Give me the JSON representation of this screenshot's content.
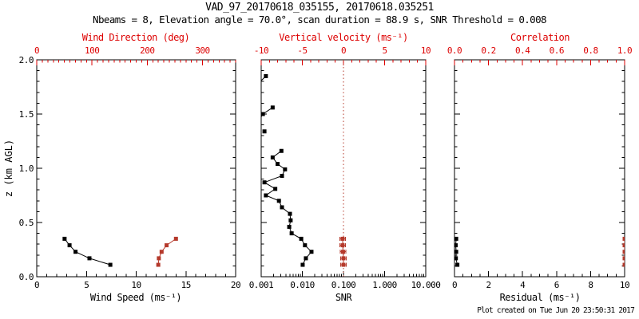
{
  "header": {
    "title": "VAD_97_20170618_035155, 20170618.035251",
    "subtitle": "Nbeams = 8, Elevation angle = 70.0°, scan duration = 88.9 s, SNR Threshold = 0.008"
  },
  "footer": {
    "created": "Plot created on Tue Jun 20 23:50:31 2017"
  },
  "colors": {
    "background": "#ffffff",
    "black": "#000000",
    "axis_red": "#dd0000",
    "data_red": "#b5392b"
  },
  "chart_data": [
    {
      "id": "wind-panel",
      "type": "scatter",
      "ylabel": "z (km AGL)",
      "ylim": [
        0,
        2
      ],
      "yticks": {
        "major": [
          0,
          0.5,
          1,
          1.5,
          2
        ],
        "labels": [
          "0.0",
          "0.5",
          "1.0",
          "1.5",
          "2.0"
        ],
        "minor_step": 0.1
      },
      "bottom_axis": {
        "label": "Wind Speed (ms⁻¹)",
        "scale": "linear",
        "lim": [
          0,
          20
        ],
        "major": [
          0,
          5,
          10,
          15,
          20
        ],
        "labels": [
          "0",
          "5",
          "10",
          "15",
          "20"
        ],
        "minor_step": 1,
        "color": "black"
      },
      "top_axis": {
        "label": "Wind Direction (deg)",
        "scale": "linear",
        "lim": [
          0,
          360
        ],
        "major": [
          0,
          100,
          200,
          300
        ],
        "labels": [
          "0",
          "100",
          "200",
          "300"
        ],
        "minor_step": 10,
        "color": "red"
      },
      "series": [
        {
          "name": "wind-speed",
          "axis": "bottom",
          "color": "black",
          "line_groups": [
            [
              [
                2.8,
                0.35
              ],
              [
                3.3,
                0.29
              ],
              [
                3.9,
                0.23
              ],
              [
                5.3,
                0.17
              ],
              [
                7.4,
                0.11
              ]
            ]
          ],
          "markers": [
            [
              2.8,
              0.35
            ],
            [
              3.3,
              0.29
            ],
            [
              3.9,
              0.23
            ],
            [
              5.3,
              0.17
            ],
            [
              7.4,
              0.11
            ]
          ]
        },
        {
          "name": "wind-direction",
          "axis": "top",
          "color": "red",
          "line_groups": [
            [
              [
                252,
                0.35
              ],
              [
                235,
                0.29
              ],
              [
                226,
                0.23
              ],
              [
                221,
                0.17
              ],
              [
                220,
                0.11
              ]
            ]
          ],
          "markers": [
            [
              252,
              0.35
            ],
            [
              235,
              0.29
            ],
            [
              226,
              0.23
            ],
            [
              221,
              0.17
            ],
            [
              220,
              0.11
            ]
          ]
        }
      ]
    },
    {
      "id": "snr-panel",
      "type": "scatter",
      "ylabel": "",
      "ylim": [
        0,
        2
      ],
      "yticks": {
        "major": [
          0,
          0.5,
          1,
          1.5,
          2
        ],
        "labels": [],
        "minor_step": 0.1
      },
      "bottom_axis": {
        "label": "SNR",
        "scale": "log",
        "lim": [
          0.001,
          10
        ],
        "major": [
          0.001,
          0.01,
          0.1,
          1,
          10
        ],
        "labels": [
          "0.001",
          "0.010",
          "0.100",
          "1.000",
          "10.000"
        ],
        "color": "black"
      },
      "top_axis": {
        "label": "Vertical velocity (ms⁻¹)",
        "scale": "linear",
        "lim": [
          -10,
          10
        ],
        "major": [
          -10,
          -5,
          0,
          5,
          10
        ],
        "labels": [
          "-10",
          "-5",
          "0",
          "5",
          "10"
        ],
        "minor_step": 1,
        "color": "red"
      },
      "refline": {
        "axis": "top",
        "value": 0,
        "style": "dotted",
        "color": "red"
      },
      "series": [
        {
          "name": "snr-profile",
          "axis": "bottom",
          "color": "black",
          "line_groups": [
            [
              [
                0.0013,
                1.85
              ],
              [
                0.00095,
                1.8
              ]
            ],
            [
              [
                0.0019,
                1.56
              ],
              [
                0.0011,
                1.5
              ],
              [
                0.00095,
                1.46
              ]
            ],
            [
              [
                0.0031,
                1.16
              ],
              [
                0.0019,
                1.1
              ],
              [
                0.0025,
                1.04
              ],
              [
                0.0038,
                0.99
              ],
              [
                0.0032,
                0.93
              ],
              [
                0.0012,
                0.87
              ],
              [
                0.0022,
                0.81
              ],
              [
                0.0013,
                0.75
              ],
              [
                0.0027,
                0.7
              ],
              [
                0.0032,
                0.64
              ],
              [
                0.005,
                0.58
              ],
              [
                0.0052,
                0.52
              ],
              [
                0.0048,
                0.46
              ],
              [
                0.0055,
                0.4
              ],
              [
                0.0094,
                0.35
              ],
              [
                0.0116,
                0.29
              ],
              [
                0.0167,
                0.23
              ],
              [
                0.0122,
                0.17
              ],
              [
                0.0102,
                0.11
              ]
            ]
          ],
          "markers": [
            [
              0.0013,
              1.85
            ],
            [
              0.0019,
              1.56
            ],
            [
              0.0011,
              1.5
            ],
            [
              0.0012,
              1.34
            ],
            [
              0.0031,
              1.16
            ],
            [
              0.0019,
              1.1
            ],
            [
              0.0025,
              1.04
            ],
            [
              0.0038,
              0.99
            ],
            [
              0.0032,
              0.93
            ],
            [
              0.0012,
              0.87
            ],
            [
              0.0022,
              0.81
            ],
            [
              0.0013,
              0.75
            ],
            [
              0.0027,
              0.7
            ],
            [
              0.0032,
              0.64
            ],
            [
              0.005,
              0.58
            ],
            [
              0.0052,
              0.52
            ],
            [
              0.0048,
              0.46
            ],
            [
              0.0055,
              0.4
            ],
            [
              0.0094,
              0.35
            ],
            [
              0.0116,
              0.29
            ],
            [
              0.0167,
              0.23
            ],
            [
              0.0122,
              0.17
            ],
            [
              0.0102,
              0.11
            ]
          ]
        },
        {
          "name": "vertical-velocity",
          "axis": "top",
          "color": "red",
          "xerr": 0.35,
          "line_groups": [
            [
              [
                -0.1,
                0.35
              ],
              [
                -0.1,
                0.29
              ],
              [
                -0.05,
                0.23
              ],
              [
                0,
                0.17
              ],
              [
                0,
                0.11
              ]
            ]
          ],
          "markers": [
            [
              -0.1,
              0.35
            ],
            [
              -0.1,
              0.29
            ],
            [
              -0.05,
              0.23
            ],
            [
              0,
              0.17
            ],
            [
              0,
              0.11
            ]
          ]
        }
      ]
    },
    {
      "id": "residual-panel",
      "type": "scatter",
      "ylabel": "",
      "ylim": [
        0,
        2
      ],
      "yticks": {
        "major": [
          0,
          0.5,
          1,
          1.5,
          2
        ],
        "labels": [],
        "minor_step": 0.1
      },
      "bottom_axis": {
        "label": "Residual (ms⁻¹)",
        "scale": "linear",
        "lim": [
          0,
          10
        ],
        "major": [
          0,
          2,
          4,
          6,
          8,
          10
        ],
        "labels": [
          "0",
          "2",
          "4",
          "6",
          "8",
          "10"
        ],
        "minor_step": 0.5,
        "color": "black"
      },
      "top_axis": {
        "label": "Correlation",
        "scale": "linear",
        "lim": [
          0,
          1
        ],
        "major": [
          0,
          0.2,
          0.4,
          0.6,
          0.8,
          1
        ],
        "labels": [
          "0.0",
          "0.2",
          "0.4",
          "0.6",
          "0.8",
          "1.0"
        ],
        "minor_step": 0.05,
        "color": "red"
      },
      "series": [
        {
          "name": "residual",
          "axis": "bottom",
          "color": "black",
          "line_groups": [
            [
              [
                0.1,
                0.35
              ],
              [
                0.07,
                0.29
              ],
              [
                0.1,
                0.23
              ],
              [
                0.08,
                0.17
              ],
              [
                0.17,
                0.11
              ]
            ]
          ],
          "markers": [
            [
              0.1,
              0.35
            ],
            [
              0.07,
              0.29
            ],
            [
              0.1,
              0.23
            ],
            [
              0.08,
              0.17
            ],
            [
              0.17,
              0.11
            ]
          ]
        },
        {
          "name": "correlation",
          "axis": "top",
          "color": "red",
          "line_groups": [
            [
              [
                1,
                0.35
              ],
              [
                1,
                0.29
              ],
              [
                1,
                0.23
              ],
              [
                1,
                0.17
              ],
              [
                1,
                0.11
              ]
            ]
          ],
          "markers": [
            [
              1,
              0.35
            ],
            [
              1,
              0.29
            ],
            [
              1,
              0.23
            ],
            [
              1,
              0.17
            ],
            [
              1,
              0.11
            ]
          ]
        }
      ]
    }
  ]
}
